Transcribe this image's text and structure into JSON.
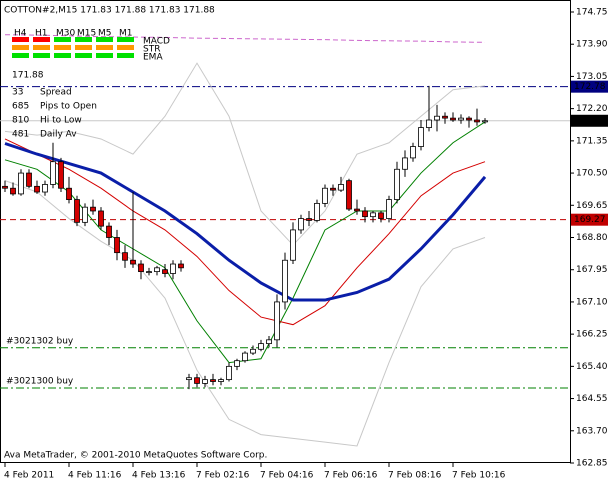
{
  "chart_data": {
    "type": "candlestick",
    "title": "COTTON#2,M15  171.83 171.88 171.83 171.88",
    "footer": "Ava MetaTrader, © 2001-2010 MetaQuotes Software Corp.",
    "ylim": [
      162.85,
      174.75
    ],
    "yticks": [
      174.75,
      {
        "value": 173.9,
        "label": "173.90"
      },
      173.05,
      {
        "value": 172.2,
        "label": "172.20"
      },
      171.35,
      {
        "value": 170.5,
        "label": "170.50"
      },
      169.65,
      {
        "value": 168.8,
        "label": "168.80"
      },
      167.95,
      {
        "value": 167.1,
        "label": "167.10"
      },
      166.25,
      {
        "value": 165.4,
        "label": "165.40"
      },
      164.55,
      {
        "value": 163.7,
        "label": "163.70"
      },
      162.85
    ],
    "categories": [
      "4 Feb 2011",
      null,
      null,
      null,
      null,
      null,
      null,
      null,
      "4 Feb 11:16",
      null,
      null,
      null,
      null,
      null,
      null,
      null,
      "4 Feb 13:16",
      null,
      null,
      null,
      null,
      null,
      null,
      null,
      "7 Feb 02:16",
      null,
      null,
      null,
      null,
      null,
      null,
      null,
      "7 Feb 04:16",
      null,
      null,
      null,
      null,
      null,
      null,
      null,
      "7 Feb 06:16",
      null,
      null,
      null,
      null,
      null,
      null,
      null,
      "7 Feb 08:16",
      null,
      null,
      null,
      null,
      null,
      null,
      null,
      "7 Feb 10:16",
      null,
      null,
      null,
      null,
      null
    ],
    "candles": [
      [
        170.15,
        170.3,
        170.0,
        170.1
      ],
      [
        170.1,
        170.25,
        169.9,
        169.95
      ],
      [
        169.95,
        170.6,
        169.9,
        170.5
      ],
      [
        170.5,
        170.6,
        170.1,
        170.15
      ],
      [
        170.15,
        170.3,
        169.95,
        170.0
      ],
      [
        170.0,
        170.3,
        169.9,
        170.2
      ],
      [
        170.2,
        171.3,
        170.1,
        170.8
      ],
      [
        170.8,
        170.9,
        170.0,
        170.1
      ],
      [
        170.1,
        170.4,
        169.7,
        169.8
      ],
      [
        169.8,
        169.9,
        169.1,
        169.2
      ],
      [
        169.2,
        169.7,
        169.1,
        169.6
      ],
      [
        169.6,
        169.8,
        169.4,
        169.5
      ],
      [
        169.5,
        169.6,
        169.0,
        169.1
      ],
      [
        169.1,
        169.2,
        168.6,
        168.8
      ],
      [
        168.8,
        169.0,
        168.2,
        168.4
      ],
      [
        168.4,
        168.6,
        168.0,
        168.2
      ],
      [
        168.2,
        170.0,
        168.0,
        168.1
      ],
      [
        168.1,
        168.2,
        167.7,
        167.9
      ],
      [
        167.9,
        168.0,
        167.8,
        167.9
      ],
      [
        167.9,
        168.05,
        167.8,
        168.0
      ],
      [
        167.95,
        168.1,
        167.75,
        167.85
      ],
      [
        167.85,
        168.2,
        167.7,
        168.1
      ],
      [
        168.1,
        168.2,
        167.9,
        168.0
      ],
      [
        165.05,
        165.2,
        164.8,
        165.1
      ],
      [
        165.1,
        165.2,
        164.85,
        164.95
      ],
      [
        164.95,
        165.15,
        164.85,
        165.05
      ],
      [
        165.05,
        165.2,
        164.9,
        165.0
      ],
      [
        165.0,
        165.1,
        164.9,
        165.05
      ],
      [
        165.05,
        165.5,
        165.0,
        165.4
      ],
      [
        165.4,
        165.6,
        165.3,
        165.55
      ],
      [
        165.55,
        165.8,
        165.5,
        165.75
      ],
      [
        165.75,
        165.95,
        165.7,
        165.85
      ],
      [
        165.85,
        166.1,
        165.8,
        166.0
      ],
      [
        166.0,
        166.2,
        165.9,
        166.1
      ],
      [
        166.1,
        167.3,
        165.9,
        167.1
      ],
      [
        167.1,
        168.4,
        166.9,
        168.2
      ],
      [
        168.2,
        169.2,
        168.1,
        169.0
      ],
      [
        169.0,
        169.4,
        168.9,
        169.3
      ],
      [
        169.3,
        169.5,
        169.1,
        169.25
      ],
      [
        169.25,
        169.8,
        169.2,
        169.7
      ],
      [
        169.7,
        170.2,
        169.6,
        170.1
      ],
      [
        170.1,
        170.2,
        169.9,
        170.05
      ],
      [
        170.05,
        170.4,
        170.0,
        170.2
      ],
      [
        170.3,
        170.35,
        169.5,
        169.55
      ],
      [
        169.55,
        169.8,
        169.4,
        169.5
      ],
      [
        169.5,
        169.6,
        169.2,
        169.35
      ],
      [
        169.35,
        169.5,
        169.2,
        169.45
      ],
      [
        169.45,
        169.5,
        169.2,
        169.3
      ],
      [
        169.3,
        169.9,
        169.2,
        169.8
      ],
      [
        169.8,
        170.8,
        169.7,
        170.6
      ],
      [
        170.6,
        171.1,
        170.4,
        170.9
      ],
      [
        170.9,
        171.3,
        170.8,
        171.2
      ],
      [
        171.2,
        171.9,
        171.1,
        171.7
      ],
      [
        171.7,
        172.8,
        171.6,
        171.9
      ],
      [
        171.9,
        172.3,
        171.6,
        172.0
      ],
      [
        172.0,
        172.1,
        171.8,
        171.95
      ],
      [
        171.95,
        172.1,
        171.85,
        171.9
      ],
      [
        171.9,
        172.05,
        171.8,
        171.95
      ],
      [
        171.95,
        172.0,
        171.7,
        171.9
      ],
      [
        171.9,
        172.2,
        171.75,
        171.85
      ],
      [
        171.85,
        171.95,
        171.8,
        171.88
      ]
    ],
    "up_color": "#ffffff",
    "down_color": "#d40000",
    "indicator_x": [
      0,
      4,
      8,
      12,
      16,
      20,
      24,
      28,
      32,
      36,
      40,
      44,
      48,
      52,
      56,
      60
    ],
    "indicators": [
      {
        "color": "#c8c8c8",
        "width": 1,
        "values": [
          171.6,
          171.5,
          171.6,
          171.4,
          171.0,
          172.0,
          173.4,
          172.0,
          169.5,
          168.6,
          169.5,
          171.0,
          171.3,
          172.0,
          172.7,
          172.8
        ]
      },
      {
        "color": "#c8c8c8",
        "width": 1,
        "values": [
          170.3,
          170.0,
          169.3,
          168.7,
          168.2,
          167.2,
          165.3,
          164.0,
          163.6,
          163.5,
          163.4,
          163.3,
          165.5,
          167.5,
          168.5,
          168.8
        ]
      },
      {
        "color": "#cc66cc",
        "width": 1,
        "dash": true,
        "values": [
          174.15,
          174.14,
          174.12,
          174.1,
          174.09,
          174.08,
          174.06,
          174.05,
          174.04,
          174.03,
          174.02,
          174.0,
          173.99,
          173.98,
          173.96,
          173.95
        ]
      },
      {
        "color": "#008000",
        "width": 1,
        "values": [
          170.85,
          170.6,
          170.0,
          169.0,
          168.5,
          168.0,
          166.6,
          165.5,
          165.6,
          167.2,
          169.0,
          169.5,
          169.5,
          170.5,
          171.3,
          171.85
        ]
      },
      {
        "color": "#d40000",
        "width": 1,
        "values": [
          171.4,
          171.0,
          170.6,
          170.1,
          169.5,
          169.0,
          168.3,
          167.4,
          166.7,
          166.5,
          167.0,
          168.0,
          168.9,
          169.9,
          170.5,
          170.8
        ]
      },
      {
        "color": "#0a1ea8",
        "width": 3,
        "values": [
          171.28,
          171.0,
          170.75,
          170.5,
          170.0,
          169.5,
          168.9,
          168.2,
          167.6,
          167.15,
          167.15,
          167.35,
          167.7,
          168.5,
          169.4,
          170.4
        ]
      }
    ],
    "levels": [
      {
        "value": 172.78,
        "color": "#000080",
        "style": "dashdot",
        "box": "#000080"
      },
      {
        "value": 171.88,
        "color": "#c8c8c8",
        "style": "solid",
        "box": "#000000"
      },
      {
        "value": 169.27,
        "color": "#c00000",
        "style": "dashed",
        "box": "#c00000"
      }
    ],
    "orders": [
      {
        "value": 165.89,
        "label": "#3021302 buy",
        "color": "#008000"
      },
      {
        "value": 164.83,
        "label": "#3021300 buy",
        "color": "#008000"
      }
    ],
    "panel": {
      "timeframes": [
        "H4",
        "H1",
        "M30",
        "M15",
        "M5",
        "M1"
      ],
      "indicators": [
        "MACD",
        "STR",
        "EMA"
      ],
      "signals": [
        [
          "#ff0000",
          "#ff0000",
          "#00e000",
          "#00e000",
          "#00e000",
          "#00e000"
        ],
        [
          "#ff9900",
          "#ff9900",
          "#ff9900",
          "#ff9900",
          "#ff9900",
          "#ff9900"
        ],
        [
          "#00e000",
          "#00e000",
          "#00e000",
          "#00e000",
          "#00e000",
          "#00e000"
        ]
      ],
      "price": 171.88,
      "price_color": "#00c000",
      "stats": [
        {
          "value": 33,
          "label": "Spread",
          "color": "#e8e800"
        },
        {
          "value": 685,
          "label": "Pips to Open",
          "color": "#00c8c8"
        },
        {
          "value": 810,
          "label": "Hi to Low",
          "color": "#ffa500"
        },
        {
          "value": 481,
          "label": "Daily Av",
          "color": "#00c000"
        }
      ]
    }
  }
}
